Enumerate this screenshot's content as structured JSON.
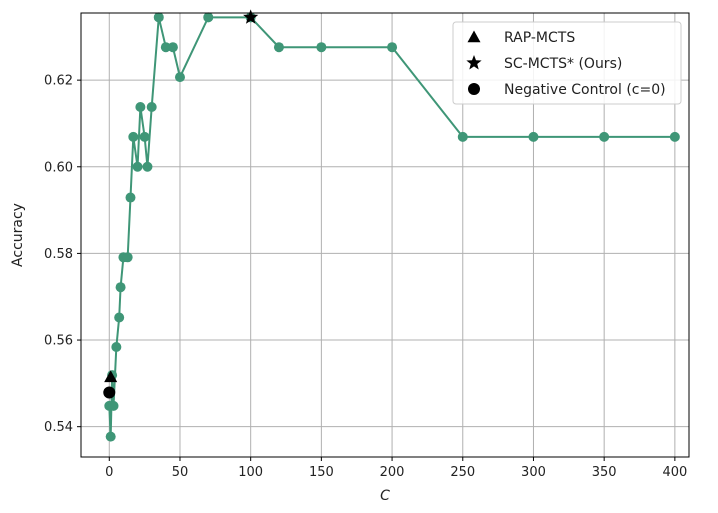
{
  "chart_data": {
    "type": "line",
    "xlabel": "C",
    "ylabel": "Accuracy",
    "xlim": [
      -20,
      410
    ],
    "ylim": [
      0.533,
      0.6355
    ],
    "xticks": [
      0,
      50,
      100,
      150,
      200,
      250,
      300,
      350,
      400
    ],
    "yticks": [
      0.54,
      0.56,
      0.58,
      0.6,
      0.62
    ],
    "xtick_labels": [
      "0",
      "50",
      "100",
      "150",
      "200",
      "250",
      "300",
      "350",
      "400"
    ],
    "ytick_labels": [
      "0.54",
      "0.56",
      "0.58",
      "0.60",
      "0.62"
    ],
    "grid": true,
    "line_color": "#3f9677",
    "series": [
      {
        "x": [
          0,
          1,
          2,
          3,
          5,
          7,
          8,
          10,
          13,
          15,
          17,
          20,
          22,
          25,
          27,
          30,
          35,
          40,
          45,
          50,
          70,
          100,
          120,
          150,
          200,
          250,
          300,
          350,
          400
        ],
        "y": [
          0.5448,
          0.5377,
          0.5519,
          0.5448,
          0.5584,
          0.5652,
          0.5722,
          0.5791,
          0.5791,
          0.5929,
          0.6069,
          0.6,
          0.6138,
          0.6069,
          0.6,
          0.6138,
          0.6345,
          0.6276,
          0.6276,
          0.6207,
          0.6345,
          0.6345,
          0.6276,
          0.6276,
          0.6276,
          0.6069,
          0.6069,
          0.6069,
          0.6069
        ]
      }
    ],
    "markers": [
      {
        "name": "RAP-MCTS",
        "shape": "triangle",
        "x": 1,
        "y": 0.5515,
        "color": "#000000"
      },
      {
        "name": "SC-MCTS* (Ours)",
        "shape": "star",
        "x": 100,
        "y": 0.6345,
        "color": "#000000"
      },
      {
        "name": "Negative Control (c=0)",
        "shape": "circle",
        "x": 0,
        "y": 0.5479,
        "color": "#000000"
      }
    ],
    "legend": {
      "position": "top-right",
      "entries": [
        {
          "shape": "triangle",
          "label": "RAP-MCTS"
        },
        {
          "shape": "star",
          "label": "SC-MCTS* (Ours)"
        },
        {
          "shape": "circle",
          "label": "Negative Control (c=0)"
        }
      ]
    }
  }
}
